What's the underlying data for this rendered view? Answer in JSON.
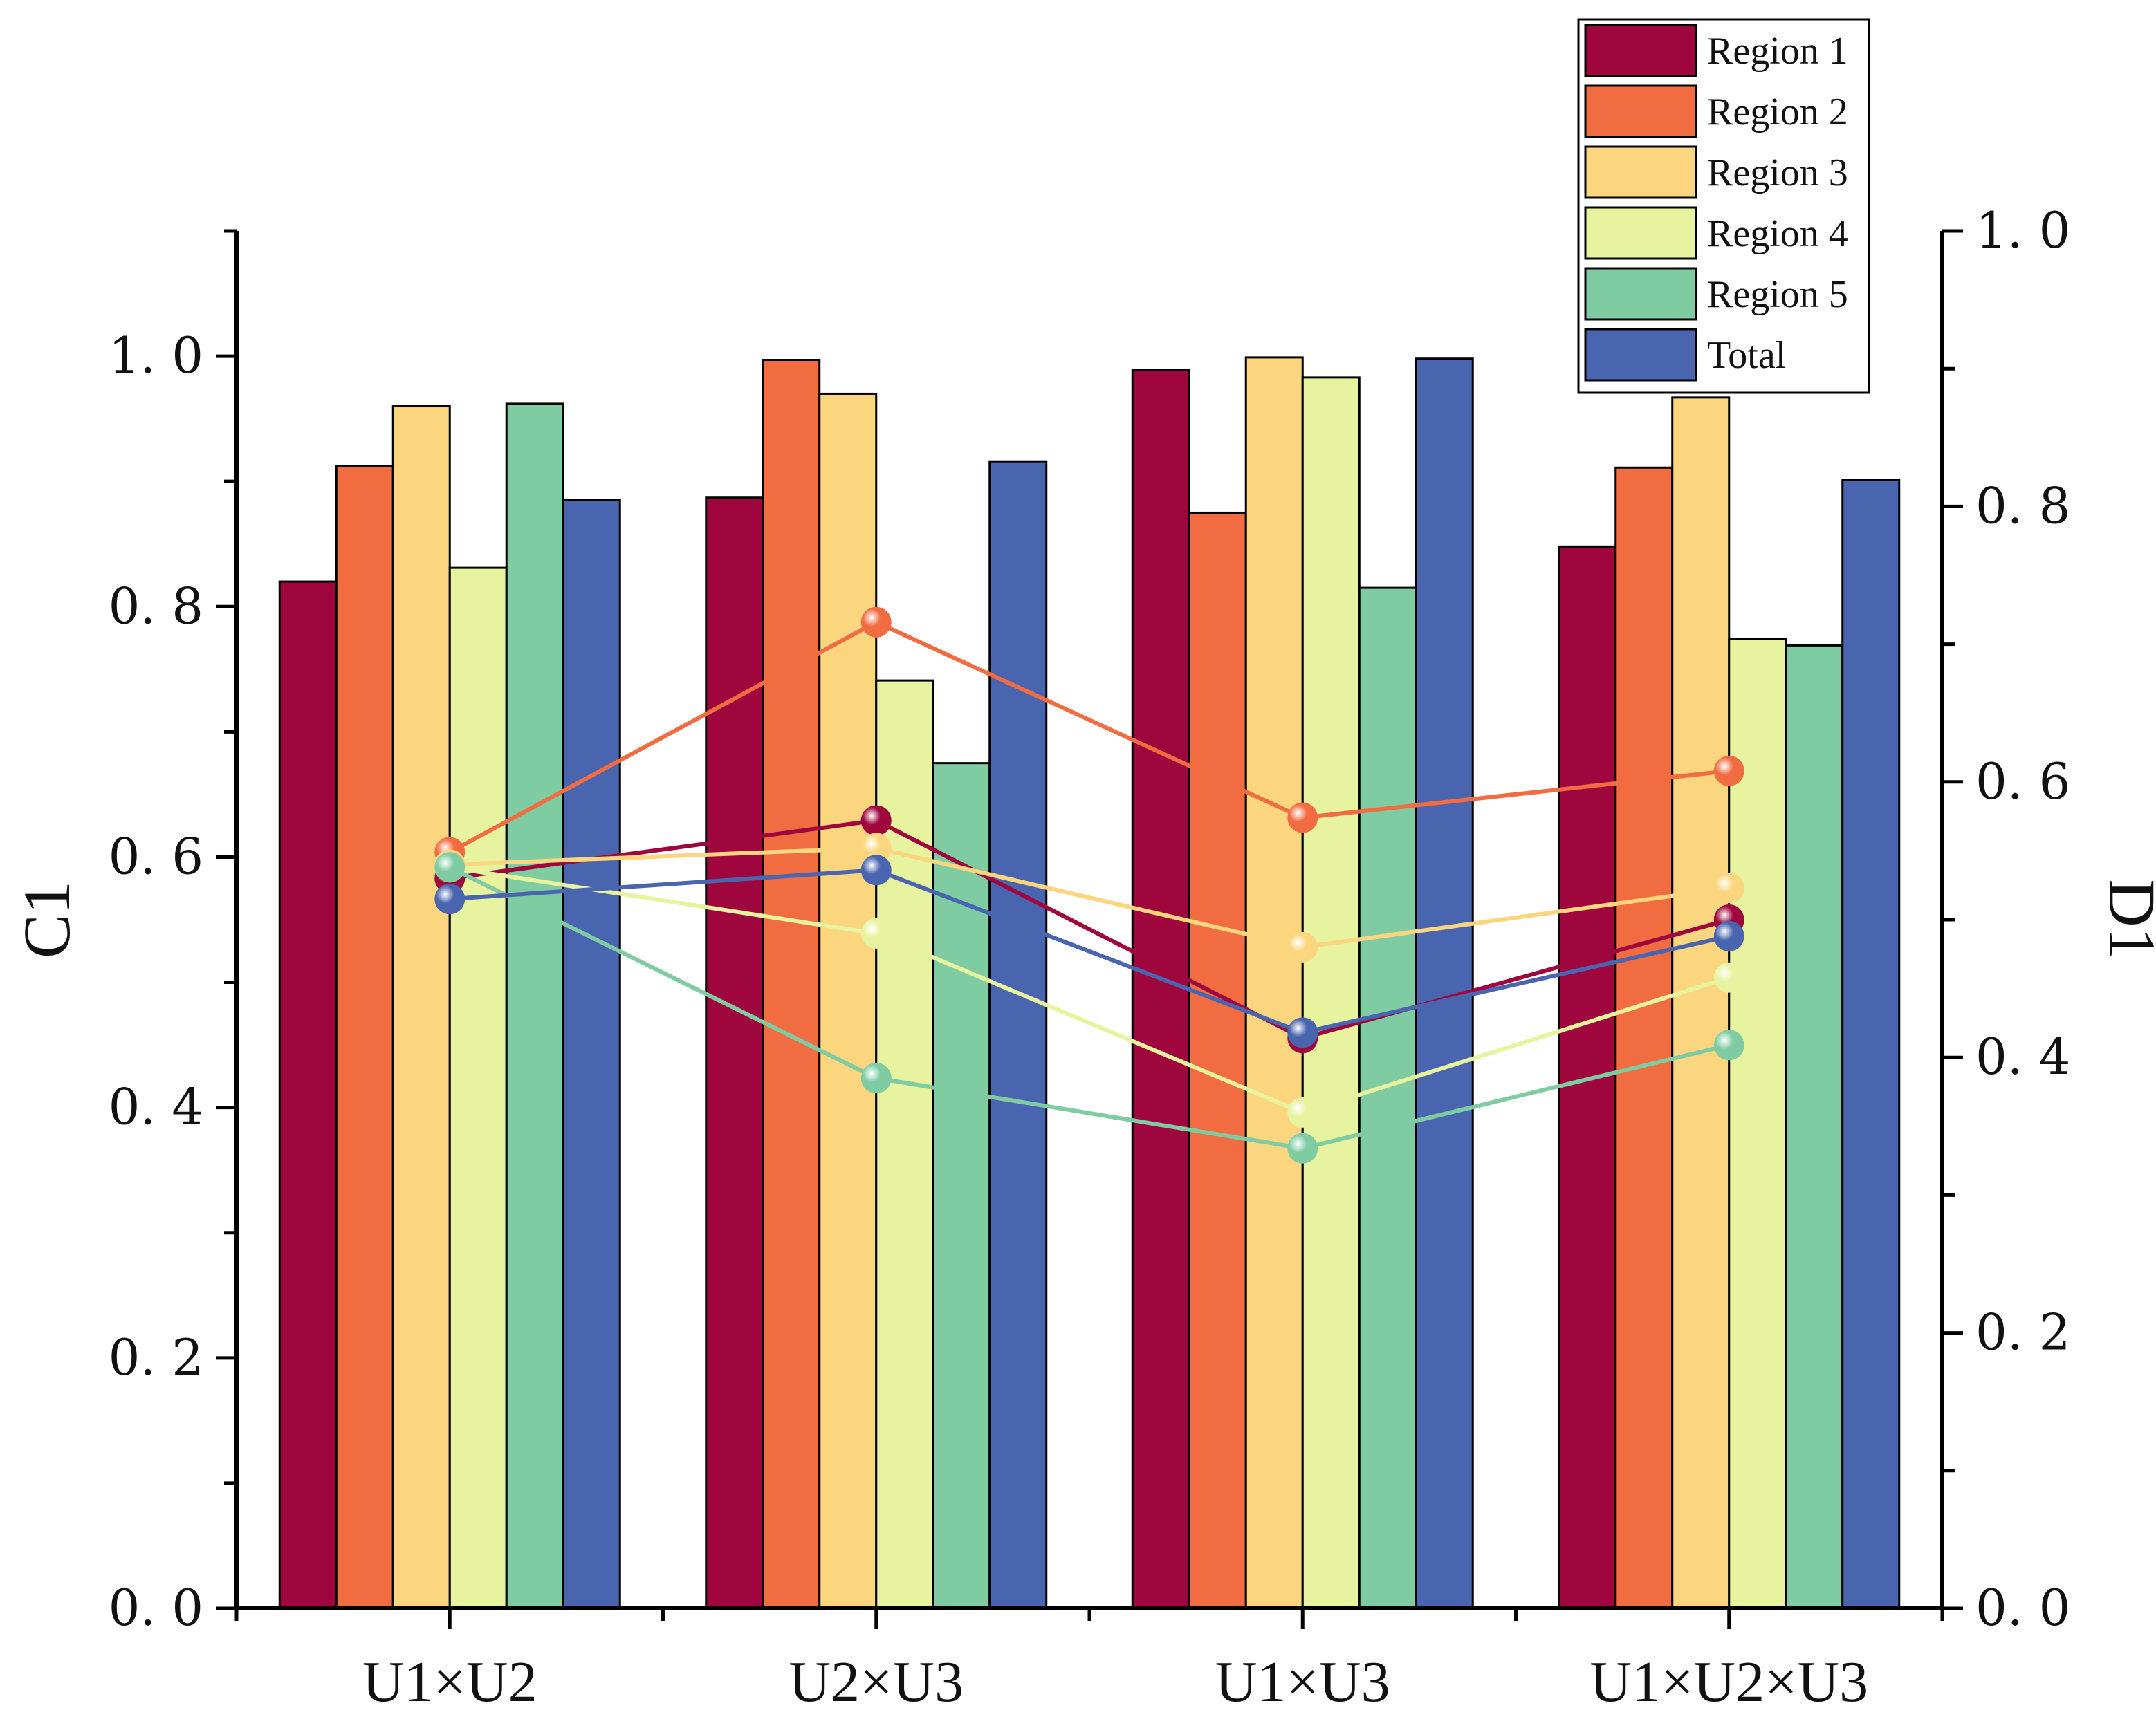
{
  "chart_data": {
    "type": "bar",
    "categories": [
      "U1×U2",
      "U2×U3",
      "U1×U3",
      "U1×U2×U3"
    ],
    "ylabel": "C1",
    "ylabel_right": "D1",
    "ylim": [
      0,
      1.1
    ],
    "ylim_right": [
      0,
      1.0
    ],
    "yticks": [
      "0. 0",
      "0. 2",
      "0. 4",
      "0. 6",
      "0. 8",
      "1. 0"
    ],
    "yticks_right": [
      "0. 0",
      "0. 2",
      "0. 4",
      "0. 6",
      "0. 8",
      "1. 0"
    ],
    "legend_position": "top-right",
    "series": [
      {
        "name": "Region 1",
        "color": "#A0063E",
        "values": [
          0.82,
          0.887,
          0.989,
          0.848
        ],
        "line_values": [
          0.53,
          0.572,
          0.414,
          0.5
        ]
      },
      {
        "name": "Region 2",
        "color": "#F26C41",
        "values": [
          0.912,
          0.997,
          0.875,
          0.911
        ],
        "line_values": [
          0.549,
          0.716,
          0.574,
          0.608
        ]
      },
      {
        "name": "Region 3",
        "color": "#FBD67E",
        "values": [
          0.96,
          0.97,
          0.999,
          0.967
        ],
        "line_values": [
          0.54,
          0.552,
          0.48,
          0.523
        ]
      },
      {
        "name": "Region 4",
        "color": "#E7F39E",
        "values": [
          0.831,
          0.741,
          0.983,
          0.774
        ],
        "line_values": [
          0.538,
          0.49,
          0.36,
          0.458
        ]
      },
      {
        "name": "Region 5",
        "color": "#7FCCA3",
        "values": [
          0.962,
          0.675,
          0.815,
          0.769
        ],
        "line_values": [
          0.538,
          0.385,
          0.334,
          0.409
        ]
      },
      {
        "name": "Total",
        "color": "#4A65AF",
        "values": [
          0.885,
          0.916,
          0.998,
          0.901
        ],
        "line_values": [
          0.515,
          0.536,
          0.418,
          0.488
        ]
      }
    ]
  }
}
